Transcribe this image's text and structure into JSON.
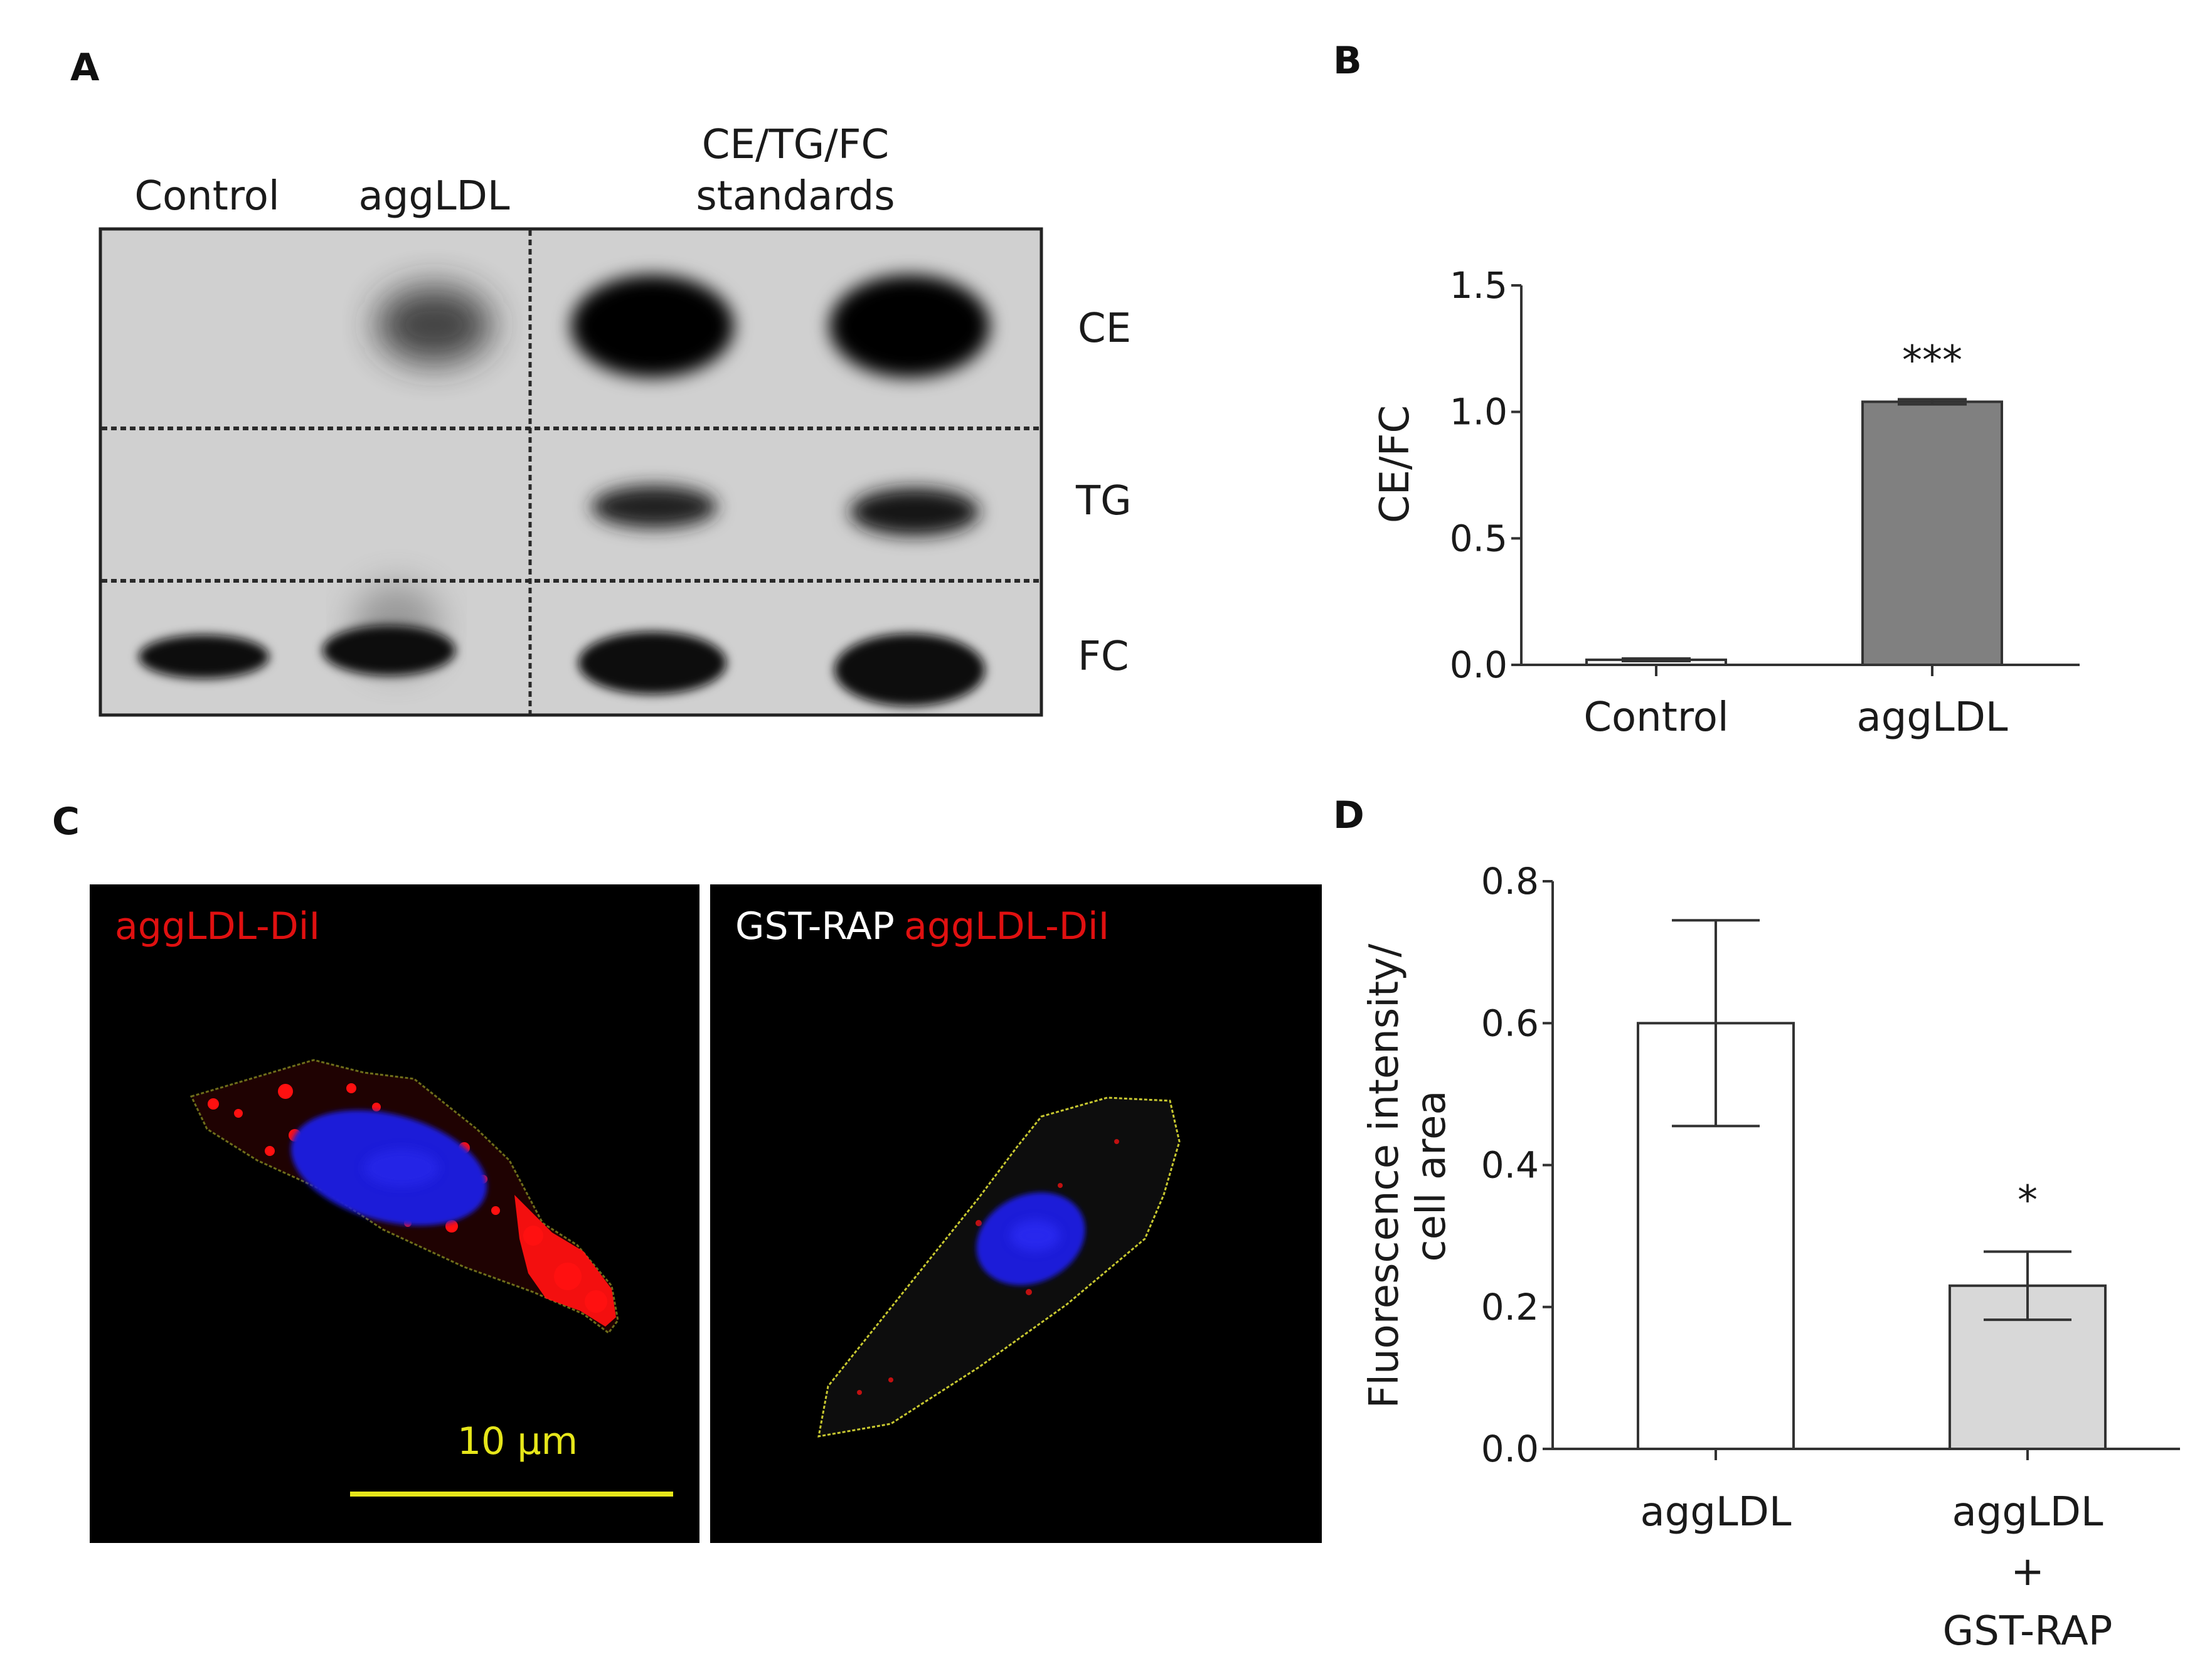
{
  "panels": {
    "a": "A",
    "b": "B",
    "c": "C",
    "d": "D"
  },
  "blot": {
    "lane_labels": [
      "Control",
      "aggLDL"
    ],
    "standards_label_lines": [
      "CE/TG/FC",
      "standards"
    ],
    "row_labels": [
      "CE",
      "TG",
      "FC"
    ]
  },
  "micro": {
    "left_label": "aggLDL-DiI",
    "right_label_prefix": "GST-RAP",
    "right_label_suffix": "aggLDL-DiI",
    "scale_label": "10 µm",
    "colors": {
      "background": "#000000",
      "label_red": "#e01010",
      "label_white": "#ffffff",
      "scale": "#e6e61a",
      "nucleus": "#1a1ad8",
      "outline": "#c8c830",
      "signal": "#ff1010"
    }
  },
  "chart_data": [
    {
      "type": "bar",
      "panel": "B",
      "categories": [
        "Control",
        "aggLDL"
      ],
      "values": [
        0.02,
        1.04
      ],
      "errors": [
        0.005,
        0.01
      ],
      "significance": [
        "",
        "***"
      ],
      "ylabel": "CE/FC",
      "ylim": [
        0,
        1.5
      ],
      "yticks": [
        "0.0",
        "0.5",
        "1.0",
        "1.5"
      ],
      "colors": [
        "#ffffff",
        "#808080"
      ]
    },
    {
      "type": "bar",
      "panel": "D",
      "categories": [
        [
          "aggLDL"
        ],
        [
          "aggLDL",
          "+",
          "GST-RAP"
        ]
      ],
      "values": [
        0.6,
        0.23
      ],
      "errors": [
        0.145,
        0.048
      ],
      "significance": [
        "",
        "*"
      ],
      "ylabel_lines": [
        "Fluorescence intensity/",
        "cell area"
      ],
      "ylim": [
        0,
        0.8
      ],
      "yticks": [
        "0.0",
        "0.2",
        "0.4",
        "0.6",
        "0.8"
      ],
      "colors": [
        "#ffffff",
        "#d8d8d8"
      ]
    }
  ]
}
